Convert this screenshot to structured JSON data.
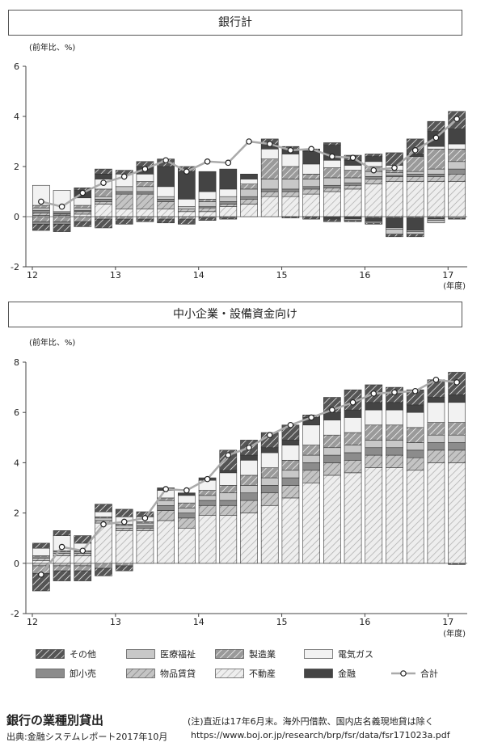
{
  "legend": [
    {
      "key": "other",
      "label": "その他"
    },
    {
      "key": "medical",
      "label": "医療福祉"
    },
    {
      "key": "mfg",
      "label": "製造業"
    },
    {
      "key": "elec",
      "label": "電気ガス"
    },
    {
      "key": "wholesale",
      "label": "卸小売"
    },
    {
      "key": "leasing",
      "label": "物品賃貸"
    },
    {
      "key": "realestate",
      "label": "不動産"
    },
    {
      "key": "finance",
      "label": "金融"
    },
    {
      "key": "total",
      "label": "合計"
    }
  ],
  "styles": {
    "other": {
      "fill": "#555555",
      "hatch": "#ffffff"
    },
    "medical": {
      "fill": "#c8c8c8"
    },
    "mfg": {
      "fill": "#9a9a9a",
      "hatch": "#ffffff"
    },
    "elec": {
      "fill": "#f2f2f2"
    },
    "wholesale": {
      "fill": "#8c8c8c"
    },
    "leasing": {
      "fill": "#c4c4c4",
      "hatch": "#7a7a7a"
    },
    "realestate": {
      "fill": "#eeeeee",
      "hatch": "#aaaaaa"
    },
    "finance": {
      "fill": "#444444"
    },
    "total": {
      "line": "#aaaaaa",
      "marker": "#ffffff"
    }
  },
  "footer": {
    "title": "銀行の業種別貸出",
    "note": "(注)直近は17年6月末。海外円借款、国内店名義現地貸は除く",
    "source": "出典:金融システムレポート2017年10月",
    "url": "https://www.boj.or.jp/research/brp/fsr/data/fsr171023a.pdf"
  },
  "chart_data": [
    {
      "type": "bar",
      "stacked": true,
      "title": "銀行計",
      "ylabel": "(前年比、%)",
      "xlabel": "(年度)",
      "ylim": [
        -2,
        6
      ],
      "yticks": [
        -2,
        0,
        2,
        4,
        6
      ],
      "x_tick_labels": [
        "12",
        "13",
        "14",
        "15",
        "16",
        "17"
      ],
      "x_tick_index": [
        0,
        4,
        8,
        12,
        16,
        20
      ],
      "n": 21,
      "series": [
        {
          "key": "realestate",
          "values": [
            0.05,
            0.05,
            0.1,
            0.5,
            0.3,
            0.3,
            0.3,
            0.2,
            0.2,
            0.4,
            0.5,
            0.8,
            0.8,
            0.9,
            1.0,
            1.1,
            1.3,
            1.4,
            1.4,
            1.4,
            1.4
          ]
        },
        {
          "key": "leasing",
          "values": [
            0.1,
            0.05,
            0.1,
            0.1,
            0.6,
            0.6,
            0.3,
            0.1,
            0.15,
            0.1,
            0.2,
            0.2,
            0.2,
            0.2,
            0.15,
            0.15,
            0.2,
            0.2,
            0.2,
            0.2,
            0.3
          ]
        },
        {
          "key": "wholesale",
          "values": [
            0.1,
            0.05,
            0.05,
            0.1,
            0.1,
            0.1,
            0.1,
            0.0,
            0.05,
            0.1,
            0.1,
            0.1,
            0.1,
            0.1,
            0.1,
            0.1,
            0.1,
            0.05,
            0.1,
            0.1,
            0.2
          ]
        },
        {
          "key": "medical",
          "values": [
            0.1,
            0.05,
            0.1,
            0.1,
            0.2,
            0.2,
            0.1,
            0.1,
            0.2,
            0.2,
            0.3,
            0.4,
            0.4,
            0.3,
            0.3,
            0.2,
            0.2,
            0.1,
            0.1,
            0.2,
            0.3
          ]
        },
        {
          "key": "mfg",
          "values": [
            0.1,
            0.0,
            0.1,
            0.3,
            0.0,
            0.2,
            0.0,
            0.0,
            0.1,
            0.0,
            0.2,
            0.8,
            0.5,
            0.2,
            0.4,
            0.3,
            0.2,
            0.1,
            0.6,
            0.8,
            0.5
          ]
        },
        {
          "key": "elec",
          "values": [
            0.8,
            0.85,
            0.3,
            0.4,
            0.5,
            0.3,
            0.4,
            0.3,
            0.3,
            0.3,
            0.2,
            0.4,
            0.5,
            0.4,
            0.3,
            0.2,
            0.2,
            0.2,
            0.0,
            0.1,
            0.2
          ]
        },
        {
          "key": "finance",
          "values": [
            0.0,
            0.0,
            0.3,
            0.2,
            0.0,
            0.3,
            0.8,
            1.1,
            0.8,
            0.8,
            0.2,
            0.2,
            0.2,
            0.5,
            0.6,
            0.2,
            0.2,
            0.0,
            0.1,
            0.6,
            0.6
          ]
        },
        {
          "key": "other",
          "values": [
            0.0,
            0.0,
            0.1,
            0.2,
            0.15,
            0.2,
            0.3,
            0.2,
            0.0,
            0.0,
            0.0,
            0.2,
            0.1,
            0.1,
            0.1,
            0.2,
            0.1,
            0.5,
            0.6,
            0.4,
            0.7
          ]
        },
        {
          "key": "mfg",
          "values": [
            -0.2,
            -0.2,
            -0.2,
            -0.1,
            -0.1,
            -0.1,
            -0.1,
            -0.1,
            -0.05,
            -0.05,
            0,
            0,
            0,
            0,
            0,
            0,
            -0.05,
            -0.05,
            -0.05,
            -0.05,
            0
          ]
        },
        {
          "key": "wholesale",
          "values": [
            -0.1,
            -0.1,
            0,
            0,
            0,
            0,
            0,
            0,
            0,
            0,
            0,
            0,
            0,
            0,
            0,
            0,
            0,
            0,
            0,
            0,
            0
          ]
        },
        {
          "key": "finance",
          "values": [
            0,
            0,
            0,
            0,
            0,
            0,
            0,
            0,
            0,
            0,
            0,
            0,
            0,
            0,
            -0.1,
            -0.1,
            -0.15,
            -0.4,
            -0.5,
            -0.05,
            0
          ]
        },
        {
          "key": "elec",
          "values": [
            0,
            0,
            0,
            0,
            0,
            0,
            0,
            0,
            0,
            0,
            0,
            0,
            0,
            0,
            0,
            -0.05,
            -0.05,
            -0.05,
            -0.05,
            -0.05,
            -0.05
          ]
        },
        {
          "key": "medical",
          "values": [
            0,
            0,
            0,
            0,
            0,
            0,
            0,
            0,
            0,
            0,
            0,
            0,
            0,
            0,
            0,
            0,
            0,
            -0.2,
            -0.1,
            -0.1,
            0
          ]
        },
        {
          "key": "other",
          "values": [
            -0.25,
            -0.3,
            -0.2,
            -0.35,
            -0.2,
            -0.1,
            -0.15,
            -0.2,
            -0.1,
            -0.05,
            0,
            0,
            -0.05,
            -0.1,
            -0.1,
            -0.05,
            -0.05,
            -0.1,
            -0.1,
            0,
            -0.05
          ]
        }
      ],
      "total": [
        0.6,
        0.4,
        0.95,
        1.35,
        1.6,
        1.9,
        2.25,
        1.8,
        2.2,
        2.15,
        3.0,
        2.9,
        2.65,
        2.7,
        2.4,
        2.35,
        1.85,
        1.95,
        2.65,
        3.15,
        3.9
      ]
    },
    {
      "type": "bar",
      "stacked": true,
      "title": "中小企業・設備資金向け",
      "ylabel": "(前年比、%)",
      "xlabel": "(年度)",
      "ylim": [
        -2,
        8
      ],
      "yticks": [
        -2,
        0,
        2,
        4,
        6,
        8
      ],
      "x_tick_labels": [
        "12",
        "13",
        "14",
        "15",
        "16",
        "17"
      ],
      "x_tick_index": [
        0,
        4,
        8,
        12,
        16,
        20
      ],
      "n": 21,
      "series": [
        {
          "key": "realestate",
          "values": [
            0.1,
            0.3,
            0.3,
            1.6,
            1.3,
            1.3,
            1.7,
            1.4,
            1.9,
            1.9,
            2.0,
            2.3,
            2.6,
            3.2,
            3.5,
            3.6,
            3.8,
            3.8,
            3.7,
            4.0,
            4.0
          ]
        },
        {
          "key": "leasing",
          "values": [
            0.1,
            0.1,
            0.1,
            0.1,
            0.1,
            0.1,
            0.4,
            0.4,
            0.4,
            0.4,
            0.5,
            0.5,
            0.5,
            0.5,
            0.5,
            0.5,
            0.5,
            0.5,
            0.5,
            0.5,
            0.5
          ]
        },
        {
          "key": "wholesale",
          "values": [
            0.0,
            0.0,
            0.0,
            0.0,
            0.0,
            0.1,
            0.2,
            0.2,
            0.2,
            0.2,
            0.3,
            0.3,
            0.3,
            0.3,
            0.3,
            0.3,
            0.3,
            0.3,
            0.3,
            0.3,
            0.3
          ]
        },
        {
          "key": "medical",
          "values": [
            0.05,
            0.05,
            0.05,
            0.1,
            0.1,
            0.1,
            0.2,
            0.2,
            0.2,
            0.3,
            0.3,
            0.3,
            0.3,
            0.3,
            0.3,
            0.3,
            0.3,
            0.3,
            0.3,
            0.3,
            0.3
          ]
        },
        {
          "key": "mfg",
          "values": [
            0.05,
            0.05,
            0.05,
            0.05,
            0.05,
            0.05,
            0.1,
            0.2,
            0.2,
            0.3,
            0.4,
            0.4,
            0.4,
            0.4,
            0.5,
            0.5,
            0.6,
            0.6,
            0.6,
            0.5,
            0.5
          ]
        },
        {
          "key": "elec",
          "values": [
            0.3,
            0.6,
            0.3,
            0.2,
            0.3,
            0.2,
            0.3,
            0.3,
            0.4,
            0.5,
            0.6,
            0.6,
            0.6,
            0.8,
            0.6,
            0.6,
            0.6,
            0.6,
            0.6,
            0.8,
            0.8
          ]
        },
        {
          "key": "finance",
          "values": [
            0.0,
            0.0,
            0.0,
            0.0,
            0.0,
            0.0,
            0.1,
            0.1,
            0.1,
            0.1,
            0.2,
            0.2,
            0.2,
            0.3,
            0.3,
            0.3,
            0.3,
            0.3,
            0.3,
            0.2,
            0.3
          ]
        },
        {
          "key": "other",
          "values": [
            0.2,
            0.2,
            0.3,
            0.3,
            0.3,
            0.2,
            0.0,
            0.0,
            0.0,
            0.8,
            0.6,
            0.6,
            0.6,
            0.1,
            0.6,
            0.8,
            0.7,
            0.6,
            0.6,
            0.7,
            0.9
          ]
        },
        {
          "key": "leasing",
          "values": [
            -0.1,
            -0.1,
            -0.1,
            0,
            0,
            0,
            0,
            0,
            0,
            0,
            0,
            0,
            0,
            0,
            0,
            0,
            0,
            0,
            0,
            0,
            0
          ]
        },
        {
          "key": "mfg",
          "values": [
            -0.3,
            -0.2,
            -0.2,
            -0.2,
            -0.1,
            0,
            0,
            0,
            0,
            0,
            0,
            0,
            0,
            0,
            0,
            0,
            0,
            0,
            0,
            0,
            0
          ]
        },
        {
          "key": "other",
          "values": [
            -0.7,
            -0.4,
            -0.4,
            -0.3,
            -0.2,
            0,
            0,
            0,
            0,
            0,
            0,
            0,
            0,
            0,
            0,
            0,
            0,
            0,
            0,
            0,
            -0.05
          ]
        }
      ],
      "total": [
        -0.45,
        0.65,
        0.5,
        1.55,
        1.65,
        1.8,
        2.95,
        2.9,
        3.35,
        4.3,
        4.6,
        5.1,
        5.5,
        5.8,
        6.1,
        6.4,
        6.75,
        6.8,
        6.85,
        7.3,
        7.2
      ]
    }
  ]
}
